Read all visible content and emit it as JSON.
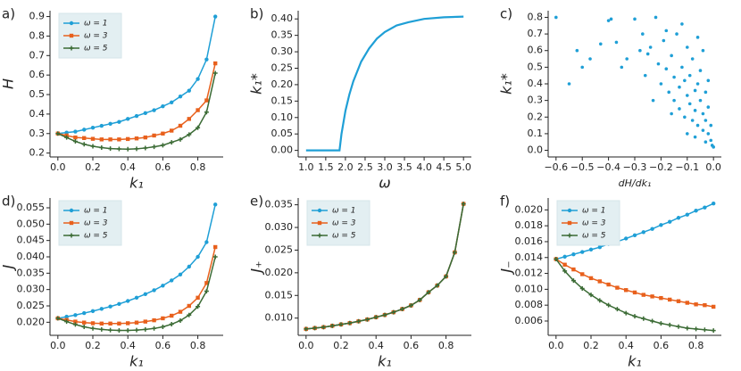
{
  "chart_data": [
    {
      "type": "line",
      "label": "a)",
      "xlabel": "k₁",
      "ylabel": "H",
      "legend": "upper left",
      "x": [
        0,
        0.05,
        0.1,
        0.15,
        0.2,
        0.25,
        0.3,
        0.35,
        0.4,
        0.45,
        0.5,
        0.55,
        0.6,
        0.65,
        0.7,
        0.75,
        0.8,
        0.85,
        0.9
      ],
      "xlim": [
        -0.045,
        0.945
      ],
      "xticks": [
        {
          "value": 0,
          "label": "0.0"
        },
        0.2,
        0.4,
        0.6,
        0.8
      ],
      "ylim": [
        0.18,
        0.93
      ],
      "yticks": [
        0.2,
        0.3,
        0.4,
        0.5,
        0.6,
        0.7,
        0.8,
        0.9
      ],
      "series": [
        {
          "name": "ω = 1",
          "color": "#1f9fd6",
          "marker": "circle",
          "values": [
            0.3,
            0.305,
            0.31,
            0.32,
            0.33,
            0.34,
            0.35,
            0.36,
            0.375,
            0.39,
            0.405,
            0.42,
            0.44,
            0.46,
            0.49,
            0.52,
            0.58,
            0.68,
            0.9
          ]
        },
        {
          "name": "ω = 3",
          "color": "#e8601c",
          "marker": "square",
          "values": [
            0.3,
            0.29,
            0.28,
            0.277,
            0.273,
            0.27,
            0.27,
            0.27,
            0.272,
            0.275,
            0.28,
            0.29,
            0.3,
            0.315,
            0.34,
            0.375,
            0.42,
            0.47,
            0.66
          ]
        },
        {
          "name": "ω = 5",
          "color": "#3b6b35",
          "marker": "plus",
          "values": [
            0.3,
            0.28,
            0.26,
            0.245,
            0.235,
            0.228,
            0.223,
            0.221,
            0.22,
            0.222,
            0.226,
            0.232,
            0.24,
            0.255,
            0.27,
            0.295,
            0.33,
            0.41,
            0.61
          ]
        }
      ]
    },
    {
      "type": "line",
      "label": "b)",
      "xlabel": "ω",
      "ylabel": "k₁*",
      "x": [
        1.0,
        1.85,
        1.9,
        2.0,
        2.1,
        2.2,
        2.4,
        2.6,
        2.8,
        3.0,
        3.3,
        3.6,
        4.0,
        4.5,
        5.0
      ],
      "xlim": [
        0.8,
        5.2
      ],
      "xticks": [
        {
          "value": 1,
          "label": "1.0"
        },
        1.5,
        {
          "value": 2,
          "label": "2.0"
        },
        2.5,
        {
          "value": 3,
          "label": "3.0"
        },
        3.5,
        {
          "value": 4,
          "label": "4.0"
        },
        4.5,
        {
          "value": 5,
          "label": "5.0"
        }
      ],
      "ylim": [
        -0.02,
        0.425
      ],
      "yticks": [
        {
          "value": 0,
          "label": "0.00"
        },
        {
          "value": 0.05,
          "label": "0.05"
        },
        {
          "value": 0.1,
          "label": "0.10"
        },
        {
          "value": 0.15,
          "label": "0.15"
        },
        {
          "value": 0.2,
          "label": "0.20"
        },
        {
          "value": 0.25,
          "label": "0.25"
        },
        {
          "value": 0.3,
          "label": "0.30"
        },
        {
          "value": 0.35,
          "label": "0.35"
        },
        {
          "value": 0.4,
          "label": "0.40"
        }
      ],
      "series": [
        {
          "color": "#1f9fd6",
          "marker": "none",
          "values": [
            0,
            0,
            0.05,
            0.12,
            0.17,
            0.21,
            0.27,
            0.31,
            0.34,
            0.36,
            0.38,
            0.39,
            0.4,
            0.405,
            0.407
          ]
        }
      ]
    },
    {
      "type": "scatter",
      "label": "c)",
      "xlabel": "dH/dk₁",
      "ylabel": "k₁*",
      "color": "#1f9fd6",
      "x": [
        -0.6,
        -0.55,
        -0.52,
        -0.5,
        -0.47,
        -0.43,
        -0.4,
        -0.39,
        -0.37,
        -0.35,
        -0.33,
        -0.3,
        -0.28,
        -0.27,
        -0.26,
        -0.25,
        -0.24,
        -0.22,
        -0.21,
        -0.2,
        -0.19,
        -0.18,
        -0.17,
        -0.16,
        -0.15,
        -0.15,
        -0.14,
        -0.13,
        -0.13,
        -0.12,
        -0.11,
        -0.11,
        -0.1,
        -0.1,
        -0.09,
        -0.09,
        -0.08,
        -0.08,
        -0.07,
        -0.07,
        -0.06,
        -0.06,
        -0.05,
        -0.05,
        -0.04,
        -0.04,
        -0.03,
        -0.03,
        -0.02,
        -0.02,
        -0.01,
        -0.01,
        -0.005,
        0.0,
        -0.02,
        -0.04,
        -0.06,
        -0.12,
        -0.18,
        -0.23,
        -0.16,
        -0.1,
        -0.07,
        -0.03
      ],
      "values": [
        0.8,
        0.4,
        0.6,
        0.5,
        0.55,
        0.64,
        0.78,
        0.79,
        0.65,
        0.5,
        0.55,
        0.79,
        0.6,
        0.7,
        0.45,
        0.58,
        0.62,
        0.8,
        0.52,
        0.4,
        0.66,
        0.49,
        0.35,
        0.57,
        0.3,
        0.44,
        0.7,
        0.38,
        0.25,
        0.5,
        0.42,
        0.2,
        0.62,
        0.33,
        0.28,
        0.45,
        0.55,
        0.18,
        0.36,
        0.24,
        0.4,
        0.15,
        0.3,
        0.48,
        0.22,
        0.12,
        0.35,
        0.18,
        0.26,
        0.1,
        0.15,
        0.06,
        0.03,
        0.02,
        0.42,
        0.6,
        0.68,
        0.76,
        0.72,
        0.3,
        0.22,
        0.1,
        0.08,
        0.05
      ],
      "xlim": [
        -0.63,
        0.03
      ],
      "xticks": [
        {
          "value": -0.6,
          "label": "−0.6"
        },
        {
          "value": -0.5,
          "label": "−0.5"
        },
        {
          "value": -0.4,
          "label": "−0.4"
        },
        {
          "value": -0.3,
          "label": "−0.3"
        },
        {
          "value": -0.2,
          "label": "−0.2"
        },
        {
          "value": -0.1,
          "label": "−0.1"
        },
        {
          "value": 0,
          "label": "0.0"
        }
      ],
      "ylim": [
        -0.04,
        0.84
      ],
      "yticks": [
        {
          "value": 0,
          "label": "0.0"
        },
        0.1,
        0.2,
        0.3,
        0.4,
        0.5,
        0.6,
        0.7,
        0.8
      ]
    },
    {
      "type": "line",
      "label": "d)",
      "xlabel": "k₁",
      "ylabel": "J",
      "legend": "upper left",
      "x": [
        0,
        0.05,
        0.1,
        0.15,
        0.2,
        0.25,
        0.3,
        0.35,
        0.4,
        0.45,
        0.5,
        0.55,
        0.6,
        0.65,
        0.7,
        0.75,
        0.8,
        0.85,
        0.9
      ],
      "xlim": [
        -0.045,
        0.945
      ],
      "xticks": [
        {
          "value": 0,
          "label": "0.0"
        },
        0.2,
        0.4,
        0.6,
        0.8
      ],
      "ylim": [
        0.016,
        0.058
      ],
      "yticks": [
        {
          "value": 0.02,
          "label": "0.020"
        },
        0.025,
        {
          "value": 0.03,
          "label": "0.030"
        },
        0.035,
        {
          "value": 0.04,
          "label": "0.040"
        },
        0.045,
        {
          "value": 0.05,
          "label": "0.050"
        },
        0.055
      ],
      "series": [
        {
          "name": "ω = 1",
          "color": "#1f9fd6",
          "marker": "circle",
          "values": [
            0.0212,
            0.0217,
            0.0222,
            0.0228,
            0.0234,
            0.0241,
            0.0248,
            0.0256,
            0.0265,
            0.0275,
            0.0286,
            0.0298,
            0.0312,
            0.0328,
            0.0346,
            0.037,
            0.04,
            0.0445,
            0.056
          ]
        },
        {
          "name": "ω = 3",
          "color": "#e8601c",
          "marker": "square",
          "values": [
            0.0212,
            0.0207,
            0.0202,
            0.0199,
            0.0197,
            0.0196,
            0.0196,
            0.0196,
            0.0197,
            0.0199,
            0.0202,
            0.0206,
            0.0212,
            0.022,
            0.0232,
            0.025,
            0.0275,
            0.032,
            0.043
          ]
        },
        {
          "name": "ω = 5",
          "color": "#3b6b35",
          "marker": "plus",
          "values": [
            0.0212,
            0.0202,
            0.0193,
            0.0186,
            0.0181,
            0.0178,
            0.0176,
            0.0175,
            0.0175,
            0.0176,
            0.0178,
            0.0181,
            0.0186,
            0.0194,
            0.0205,
            0.0222,
            0.0248,
            0.0295,
            0.04
          ]
        }
      ]
    },
    {
      "type": "line",
      "label": "e)",
      "xlabel": "k₁",
      "ylabel": "J₊",
      "legend": "upper left",
      "x": [
        0,
        0.05,
        0.1,
        0.15,
        0.2,
        0.25,
        0.3,
        0.35,
        0.4,
        0.45,
        0.5,
        0.55,
        0.6,
        0.65,
        0.7,
        0.75,
        0.8,
        0.85,
        0.9
      ],
      "xlim": [
        -0.045,
        0.945
      ],
      "xticks": [
        {
          "value": 0,
          "label": "0.0"
        },
        0.2,
        0.4,
        0.6,
        0.8
      ],
      "ylim": [
        0.0062,
        0.0365
      ],
      "yticks": [
        {
          "value": 0.01,
          "label": "0.010"
        },
        0.015,
        {
          "value": 0.02,
          "label": "0.020"
        },
        0.025,
        {
          "value": 0.03,
          "label": "0.030"
        },
        0.035
      ],
      "series": [
        {
          "name": "ω = 1",
          "color": "#1f9fd6",
          "marker": "circle",
          "values": [
            0.0076,
            0.0078,
            0.008,
            0.0083,
            0.0086,
            0.0089,
            0.0093,
            0.0097,
            0.0102,
            0.0107,
            0.0113,
            0.012,
            0.0128,
            0.014,
            0.0157,
            0.0172,
            0.0192,
            0.0245,
            0.0352
          ]
        },
        {
          "name": "ω = 3",
          "color": "#e8601c",
          "marker": "square",
          "values": [
            0.0076,
            0.0078,
            0.008,
            0.0083,
            0.0086,
            0.0089,
            0.0093,
            0.0097,
            0.0102,
            0.0107,
            0.0113,
            0.012,
            0.0128,
            0.014,
            0.0157,
            0.0172,
            0.0192,
            0.0245,
            0.0352
          ]
        },
        {
          "name": "ω = 5",
          "color": "#3b6b35",
          "marker": "plus",
          "values": [
            0.0076,
            0.0078,
            0.008,
            0.0083,
            0.0086,
            0.0089,
            0.0093,
            0.0097,
            0.0102,
            0.0107,
            0.0113,
            0.012,
            0.0128,
            0.014,
            0.0157,
            0.0172,
            0.0192,
            0.0245,
            0.0352
          ]
        }
      ]
    },
    {
      "type": "line",
      "label": "f)",
      "xlabel": "k₁",
      "ylabel": "J₋",
      "legend": "upper left",
      "x": [
        0,
        0.05,
        0.1,
        0.15,
        0.2,
        0.25,
        0.3,
        0.35,
        0.4,
        0.45,
        0.5,
        0.55,
        0.6,
        0.65,
        0.7,
        0.75,
        0.8,
        0.85,
        0.9
      ],
      "xlim": [
        -0.045,
        0.945
      ],
      "xticks": [
        {
          "value": 0,
          "label": "0.0"
        },
        0.2,
        0.4,
        0.6,
        0.8
      ],
      "ylim": [
        0.0042,
        0.0215
      ],
      "yticks": [
        0.006,
        0.008,
        {
          "value": 0.01,
          "label": "0.010"
        },
        0.012,
        0.014,
        0.016,
        0.018,
        {
          "value": 0.02,
          "label": "0.020"
        }
      ],
      "series": [
        {
          "name": "ω = 1",
          "color": "#1f9fd6",
          "marker": "circle",
          "values": [
            0.0138,
            0.0141,
            0.0144,
            0.0147,
            0.015,
            0.0153,
            0.0157,
            0.016,
            0.0164,
            0.0168,
            0.0172,
            0.0176,
            0.0181,
            0.0185,
            0.019,
            0.0194,
            0.0199,
            0.0203,
            0.0208
          ]
        },
        {
          "name": "ω = 3",
          "color": "#e8601c",
          "marker": "square",
          "values": [
            0.0138,
            0.0131,
            0.0125,
            0.0119,
            0.0114,
            0.011,
            0.0106,
            0.0102,
            0.0099,
            0.0096,
            0.0093,
            0.0091,
            0.0089,
            0.0087,
            0.0085,
            0.0083,
            0.0081,
            0.008,
            0.0078
          ]
        },
        {
          "name": "ω = 5",
          "color": "#3b6b35",
          "marker": "plus",
          "values": [
            0.0138,
            0.0123,
            0.0111,
            0.0101,
            0.0093,
            0.0086,
            0.008,
            0.0075,
            0.007,
            0.0066,
            0.0063,
            0.006,
            0.0057,
            0.0055,
            0.0053,
            0.0051,
            0.005,
            0.0049,
            0.0048
          ]
        }
      ]
    }
  ]
}
